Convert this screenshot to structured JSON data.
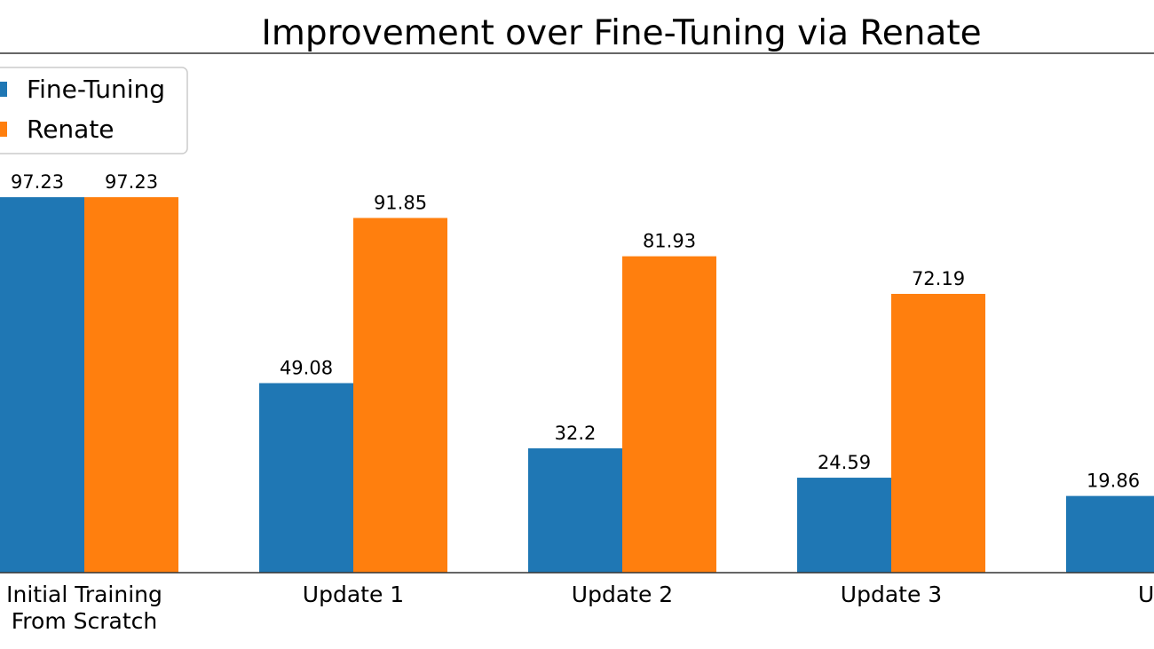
{
  "chart_data": {
    "type": "bar",
    "title": "Improvement over Fine-Tuning via Renate",
    "xlabel": "",
    "ylabel": "",
    "categories": [
      [
        "Initial Training",
        "From Scratch"
      ],
      [
        "Update 1"
      ],
      [
        "Update 2"
      ],
      [
        "Update 3"
      ],
      [
        "Upd"
      ]
    ],
    "series": [
      {
        "name": "Fine-Tuning",
        "color": "#1f77b4",
        "values": [
          97.23,
          49.08,
          32.2,
          24.59,
          19.86
        ],
        "labels": [
          "97.23",
          "49.08",
          "32.2",
          "24.59",
          "19.86"
        ]
      },
      {
        "name": "Renate",
        "color": "#ff7f0e",
        "values": [
          97.23,
          91.85,
          81.93,
          72.19,
          null
        ],
        "labels": [
          "97.23",
          "91.85",
          "81.93",
          "72.19",
          ""
        ]
      }
    ],
    "ylim": [
      0,
      100
    ],
    "grid": false,
    "legend_position": "top-left",
    "show_y_axis": false,
    "cropped": true
  }
}
